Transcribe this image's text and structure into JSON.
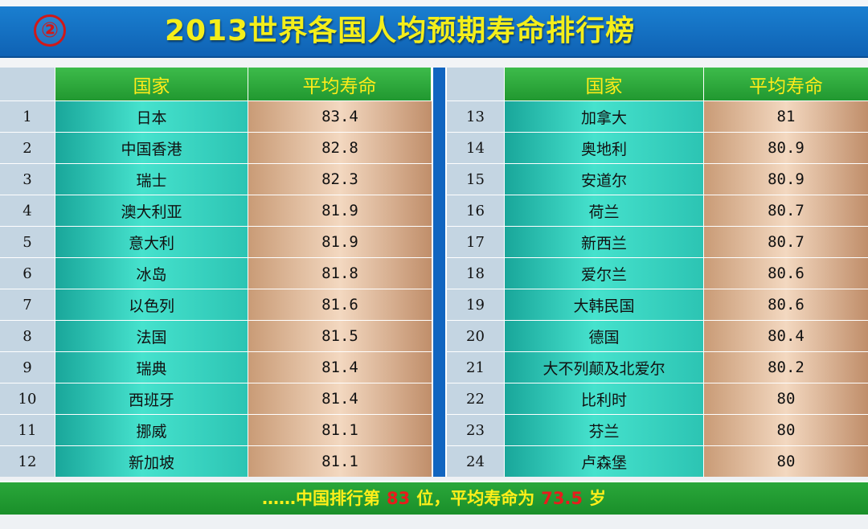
{
  "badge": "②",
  "title": "2013世界各国人均预期寿命排行榜",
  "headers": {
    "country": "国家",
    "life": "平均寿命"
  },
  "left": [
    {
      "rank": "1",
      "country": "日本",
      "value": "83.4"
    },
    {
      "rank": "2",
      "country": "中国香港",
      "value": "82.8"
    },
    {
      "rank": "3",
      "country": "瑞士",
      "value": "82.3"
    },
    {
      "rank": "4",
      "country": "澳大利亚",
      "value": "81.9"
    },
    {
      "rank": "5",
      "country": "意大利",
      "value": "81.9"
    },
    {
      "rank": "6",
      "country": "冰岛",
      "value": "81.8"
    },
    {
      "rank": "7",
      "country": "以色列",
      "value": "81.6"
    },
    {
      "rank": "8",
      "country": "法国",
      "value": "81.5"
    },
    {
      "rank": "9",
      "country": "瑞典",
      "value": "81.4"
    },
    {
      "rank": "10",
      "country": "西班牙",
      "value": "81.4"
    },
    {
      "rank": "11",
      "country": "挪威",
      "value": "81.1"
    },
    {
      "rank": "12",
      "country": "新加坡",
      "value": "81.1"
    }
  ],
  "right": [
    {
      "rank": "13",
      "country": "加拿大",
      "value": "81"
    },
    {
      "rank": "14",
      "country": "奥地利",
      "value": "80.9"
    },
    {
      "rank": "15",
      "country": "安道尔",
      "value": "80.9"
    },
    {
      "rank": "16",
      "country": "荷兰",
      "value": "80.7"
    },
    {
      "rank": "17",
      "country": "新西兰",
      "value": "80.7"
    },
    {
      "rank": "18",
      "country": "爱尔兰",
      "value": "80.6"
    },
    {
      "rank": "19",
      "country": "大韩民国",
      "value": "80.6"
    },
    {
      "rank": "20",
      "country": "德国",
      "value": "80.4"
    },
    {
      "rank": "21",
      "country": "大不列颠及北爱尔",
      "value": "80.2"
    },
    {
      "rank": "22",
      "country": "比利时",
      "value": "80"
    },
    {
      "rank": "23",
      "country": "芬兰",
      "value": "80"
    },
    {
      "rank": "24",
      "country": "卢森堡",
      "value": "80"
    }
  ],
  "footer": {
    "prefix": "……中国排行第",
    "rank": "83",
    "middle": "位，平均寿命为",
    "life": "73.5",
    "suffix": "岁"
  },
  "colors": {
    "title_bar": "#0f62b4",
    "title_text": "#f4ee1a",
    "header_bg": "#2aa73a",
    "header_text": "#ffeb1a",
    "country_bg": "#2cc4b3",
    "value_bg": "#e8c6a6",
    "rank_bg": "#c4d5e2",
    "highlight": "#e81c1c"
  }
}
